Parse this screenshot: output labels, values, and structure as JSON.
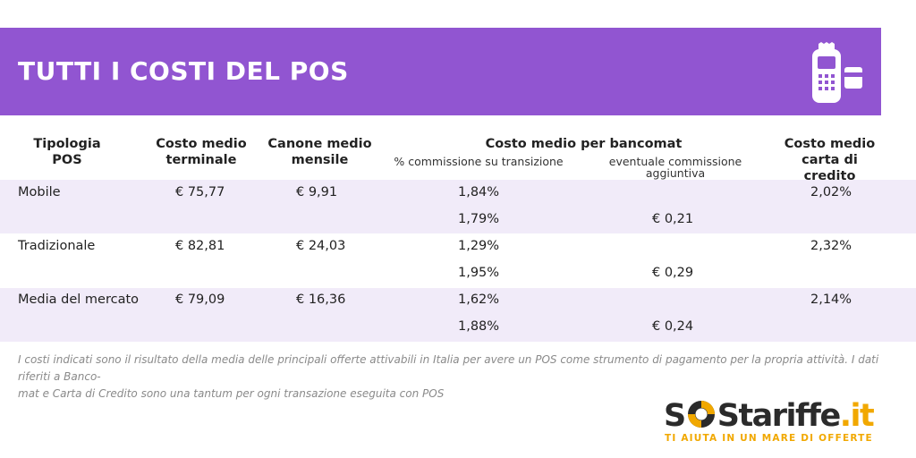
{
  "banner": {
    "title": "TUTTI I COSTI DEL POS",
    "icon": "pos-terminal-icon",
    "color": "#9155d1"
  },
  "table": {
    "headers": {
      "tipologia": [
        "Tipologia",
        "POS"
      ],
      "terminale": [
        "Costo medio",
        "terminale"
      ],
      "canone": [
        "Canone medio",
        "mensile"
      ],
      "bancomat": "Costo medio per bancomat",
      "bancomat_sub1": "% commissione su transizione",
      "bancomat_sub2": [
        "eventuale commissione",
        "aggiuntiva"
      ],
      "carta": [
        "Costo medio",
        "carta di credito"
      ]
    },
    "groups": [
      {
        "tipologia": "Mobile",
        "terminale": "€ 75,77",
        "canone": "€ 9,91",
        "carta": "2,02%",
        "rows": [
          {
            "commissione": "1,84%",
            "aggiuntiva": ""
          },
          {
            "commissione": "1,79%",
            "aggiuntiva": "€ 0,21"
          }
        ]
      },
      {
        "tipologia": "Tradizionale",
        "terminale": "€ 82,81",
        "canone": "€ 24,03",
        "carta": "2,32%",
        "rows": [
          {
            "commissione": "1,29%",
            "aggiuntiva": ""
          },
          {
            "commissione": "1,95%",
            "aggiuntiva": "€ 0,29"
          }
        ]
      },
      {
        "tipologia": "Media del mercato",
        "terminale": "€ 79,09",
        "canone": "€ 16,36",
        "carta": "2,14%",
        "rows": [
          {
            "commissione": "1,62%",
            "aggiuntiva": ""
          },
          {
            "commissione": "1,88%",
            "aggiuntiva": "€ 0,24"
          }
        ]
      }
    ]
  },
  "footnote": {
    "line1": "I costi indicati sono il risultato della media delle principali offerte attivabili in Italia per avere un POS come strumento di pagamento per la propria attività. I dati riferiti a Banco-",
    "line2": "mat e Carta di Credito sono una tantum per ogni transazione eseguita con POS"
  },
  "logo": {
    "s": "S",
    "o_icon": "lifebuoy-icon",
    "s2": "S",
    "tariffe": "tariffe",
    "it": ".it",
    "tagline": "TI AIUTA IN UN MARE DI OFFERTE",
    "dark_color": "#2b2b2b",
    "accent_color": "#f1a800"
  }
}
